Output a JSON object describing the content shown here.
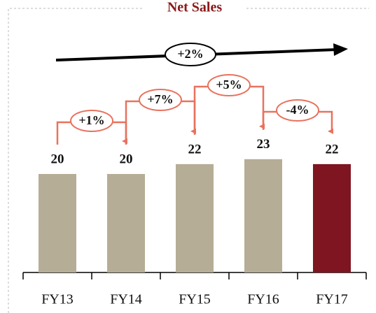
{
  "chart_data": {
    "type": "bar",
    "title": "Net Sales",
    "categories": [
      "FY13",
      "FY14",
      "FY15",
      "FY16",
      "FY17"
    ],
    "values": [
      20,
      20,
      22,
      23,
      22
    ],
    "colors": [
      "#b6ad97",
      "#b6ad97",
      "#b6ad97",
      "#b6ad97",
      "#7f1520"
    ],
    "annotations": [
      "+1%",
      "+7%",
      "+5%",
      "-4%",
      "+2%"
    ]
  }
}
